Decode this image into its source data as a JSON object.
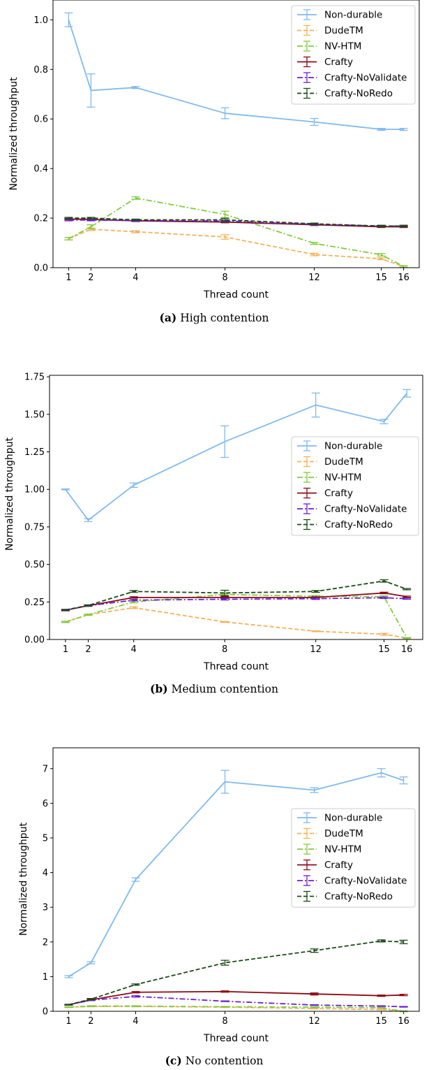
{
  "styles": {
    "Non-durable": {
      "color": "#7fbaef",
      "dash": ""
    },
    "DudeTM": {
      "color": "#f6b15a",
      "dash": "6,3"
    },
    "NV-HTM": {
      "color": "#7fcb3b",
      "dash": "8,3,2,3"
    },
    "Crafty": {
      "color": "#8b0b14",
      "dash": ""
    },
    "Crafty-NoValidate": {
      "color": "#6a1ed6",
      "dash": "8,3,2,3"
    },
    "Crafty-NoRedo": {
      "color": "#1d4a17",
      "dash": "6,3"
    }
  },
  "chart_data": [
    {
      "type": "line",
      "caption_tag": "(a)",
      "caption_text": "High contention",
      "xlabel": "Thread count",
      "ylabel": "Normalized throughput",
      "x": [
        1,
        2,
        4,
        8,
        12,
        15,
        16
      ],
      "xlim": [
        0.3,
        16.7
      ],
      "ylim": [
        0,
        1.08
      ],
      "yticks": [
        0.0,
        0.2,
        0.4,
        0.6,
        0.8,
        1.0
      ],
      "ytick_labels": [
        "0.0",
        "0.2",
        "0.4",
        "0.6",
        "0.8",
        "1.0"
      ],
      "legend_position": "top-right",
      "series": [
        {
          "name": "Non-durable",
          "values": [
            1.0,
            0.715,
            0.727,
            0.623,
            0.588,
            0.558,
            0.558
          ],
          "err": [
            0.028,
            0.067,
            0.004,
            0.022,
            0.014,
            0.004,
            0.004
          ]
        },
        {
          "name": "DudeTM",
          "values": [
            0.117,
            0.155,
            0.145,
            0.124,
            0.053,
            0.036,
            0.005
          ],
          "err": [
            0.005,
            0.005,
            0.004,
            0.009,
            0.005,
            0.004,
            0.003
          ]
        },
        {
          "name": "NV-HTM",
          "values": [
            0.117,
            0.165,
            0.281,
            0.215,
            0.098,
            0.052,
            0.005
          ],
          "err": [
            0.005,
            0.008,
            0.005,
            0.013,
            0.004,
            0.005,
            0.003
          ]
        },
        {
          "name": "Crafty",
          "values": [
            0.196,
            0.195,
            0.189,
            0.184,
            0.173,
            0.165,
            0.165
          ],
          "err": [
            0.003,
            0.003,
            0.003,
            0.003,
            0.003,
            0.003,
            0.003
          ]
        },
        {
          "name": "Crafty-NoValidate",
          "values": [
            0.192,
            0.192,
            0.19,
            0.188,
            0.175,
            0.168,
            0.168
          ],
          "err": [
            0.003,
            0.003,
            0.003,
            0.003,
            0.003,
            0.003,
            0.003
          ]
        },
        {
          "name": "Crafty-NoRedo",
          "values": [
            0.2,
            0.2,
            0.193,
            0.193,
            0.177,
            0.168,
            0.168
          ],
          "err": [
            0.003,
            0.003,
            0.003,
            0.006,
            0.003,
            0.003,
            0.003
          ]
        }
      ]
    },
    {
      "type": "line",
      "caption_tag": "(b)",
      "caption_text": "Medium contention",
      "xlabel": "Thread count",
      "ylabel": "Normalized throughput",
      "x": [
        1,
        2,
        4,
        8,
        12,
        15,
        16
      ],
      "xlim": [
        0.3,
        16.7
      ],
      "ylim": [
        0,
        1.76
      ],
      "yticks": [
        0.0,
        0.25,
        0.5,
        0.75,
        1.0,
        1.25,
        1.5,
        1.75
      ],
      "ytick_labels": [
        "0.00",
        "0.25",
        "0.50",
        "0.75",
        "1.00",
        "1.25",
        "1.50",
        "1.75"
      ],
      "legend_position": "center-right",
      "series": [
        {
          "name": "Non-durable",
          "values": [
            1.0,
            0.795,
            1.028,
            1.318,
            1.562,
            1.452,
            1.64
          ],
          "err": [
            0.003,
            0.01,
            0.015,
            0.105,
            0.08,
            0.015,
            0.025
          ]
        },
        {
          "name": "DudeTM",
          "values": [
            0.117,
            0.165,
            0.212,
            0.117,
            0.055,
            0.035,
            0.01
          ],
          "err": [
            0.004,
            0.004,
            0.006,
            0.003,
            0.003,
            0.006,
            0.003
          ]
        },
        {
          "name": "NV-HTM",
          "values": [
            0.117,
            0.165,
            0.25,
            0.3,
            0.288,
            0.285,
            0.01
          ],
          "err": [
            0.004,
            0.004,
            0.006,
            0.006,
            0.006,
            0.006,
            0.003
          ]
        },
        {
          "name": "Crafty",
          "values": [
            0.195,
            0.225,
            0.28,
            0.28,
            0.28,
            0.31,
            0.285
          ],
          "err": [
            0.004,
            0.004,
            0.005,
            0.006,
            0.005,
            0.005,
            0.004
          ]
        },
        {
          "name": "Crafty-NoValidate",
          "values": [
            0.195,
            0.225,
            0.262,
            0.268,
            0.272,
            0.278,
            0.272
          ],
          "err": [
            0.004,
            0.004,
            0.005,
            0.005,
            0.005,
            0.005,
            0.004
          ]
        },
        {
          "name": "Crafty-NoRedo",
          "values": [
            0.197,
            0.227,
            0.32,
            0.31,
            0.32,
            0.39,
            0.335
          ],
          "err": [
            0.004,
            0.004,
            0.006,
            0.018,
            0.006,
            0.008,
            0.004
          ]
        }
      ]
    },
    {
      "type": "line",
      "caption_tag": "(c)",
      "caption_text": "No contention",
      "xlabel": "Thread count",
      "ylabel": "Normalized throughput",
      "x": [
        1,
        2,
        4,
        8,
        12,
        15,
        16
      ],
      "xlim": [
        0.3,
        16.7
      ],
      "ylim": [
        0,
        7.6
      ],
      "yticks": [
        0,
        1,
        2,
        3,
        4,
        5,
        6,
        7
      ],
      "ytick_labels": [
        "0",
        "1",
        "2",
        "3",
        "4",
        "5",
        "6",
        "7"
      ],
      "legend_position": "center-right",
      "series": [
        {
          "name": "Non-durable",
          "values": [
            1.0,
            1.4,
            3.8,
            6.62,
            6.38,
            6.88,
            6.66
          ],
          "err": [
            0.03,
            0.03,
            0.05,
            0.33,
            0.07,
            0.12,
            0.1
          ]
        },
        {
          "name": "DudeTM",
          "values": [
            0.12,
            0.14,
            0.14,
            0.12,
            0.08,
            0.05,
            0.0
          ],
          "err": [
            0.01,
            0.01,
            0.01,
            0.01,
            0.01,
            0.01,
            0.01
          ]
        },
        {
          "name": "NV-HTM",
          "values": [
            0.12,
            0.15,
            0.15,
            0.13,
            0.12,
            0.1,
            0.0
          ],
          "err": [
            0.01,
            0.01,
            0.01,
            0.01,
            0.01,
            0.01,
            0.01
          ]
        },
        {
          "name": "Crafty",
          "values": [
            0.19,
            0.33,
            0.55,
            0.57,
            0.5,
            0.45,
            0.47
          ],
          "err": [
            0.01,
            0.02,
            0.02,
            0.02,
            0.03,
            0.02,
            0.02
          ]
        },
        {
          "name": "Crafty-NoValidate",
          "values": [
            0.19,
            0.32,
            0.43,
            0.29,
            0.18,
            0.15,
            0.13
          ],
          "err": [
            0.01,
            0.01,
            0.02,
            0.01,
            0.01,
            0.01,
            0.01
          ]
        },
        {
          "name": "Crafty-NoRedo",
          "values": [
            0.19,
            0.35,
            0.77,
            1.4,
            1.75,
            2.03,
            2.0
          ],
          "err": [
            0.01,
            0.02,
            0.02,
            0.07,
            0.05,
            0.03,
            0.05
          ]
        }
      ]
    }
  ]
}
